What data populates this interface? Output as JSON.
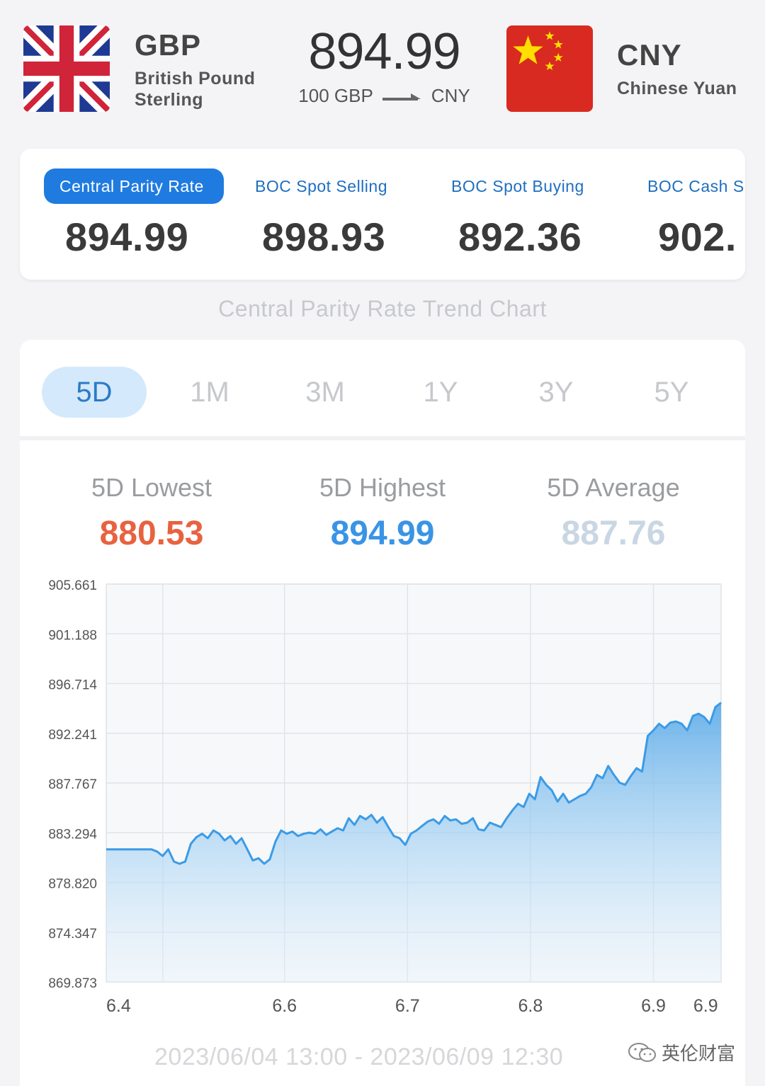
{
  "header": {
    "base": {
      "code": "GBP",
      "name": "British Pound Sterling"
    },
    "quote": {
      "code": "CNY",
      "name": "Chinese Yuan"
    },
    "rate": "894.99",
    "amount_base": "100 GBP",
    "amount_quote": "CNY"
  },
  "rates": [
    {
      "label": "Central Parity Rate",
      "value": "894.99",
      "active": true
    },
    {
      "label": "BOC Spot Selling",
      "value": "898.93",
      "active": false
    },
    {
      "label": "BOC Spot Buying",
      "value": "892.36",
      "active": false
    },
    {
      "label": "BOC Cash S",
      "value": "902.",
      "active": false
    }
  ],
  "trend_title": "Central Parity Rate Trend Chart",
  "tabs": [
    {
      "label": "5D",
      "active": true
    },
    {
      "label": "1M",
      "active": false
    },
    {
      "label": "3M",
      "active": false
    },
    {
      "label": "1Y",
      "active": false
    },
    {
      "label": "3Y",
      "active": false
    },
    {
      "label": "5Y",
      "active": false
    }
  ],
  "stats": {
    "lowest": {
      "label": "5D Lowest",
      "value": "880.53"
    },
    "highest": {
      "label": "5D Highest",
      "value": "894.99"
    },
    "average": {
      "label": "5D Average",
      "value": "887.76"
    }
  },
  "colors": {
    "accent": "#1f7be0",
    "lowest": "#e8623f",
    "highest": "#3a94e6",
    "average": "#c9d6e3",
    "line": "#3b9be6"
  },
  "chart_data": {
    "type": "area",
    "y_ticks": [
      "905.661",
      "901.188",
      "896.714",
      "892.241",
      "887.767",
      "883.294",
      "878.820",
      "874.347",
      "869.873"
    ],
    "ylim": [
      869.873,
      905.661
    ],
    "x_ticks": [
      {
        "label": "6.4",
        "pos": 0.02
      },
      {
        "label": "6.6",
        "pos": 0.29
      },
      {
        "label": "6.7",
        "pos": 0.49
      },
      {
        "label": "6.8",
        "pos": 0.69
      },
      {
        "label": "6.9",
        "pos": 0.89
      },
      {
        "label": "6.9",
        "pos": 0.975
      }
    ],
    "series": [
      {
        "values": [
          881.8,
          881.8,
          881.8,
          881.8,
          881.8,
          881.8,
          881.8,
          881.8,
          881.8,
          881.6,
          881.2,
          881.8,
          880.7,
          880.5,
          880.7,
          882.3,
          882.9,
          883.2,
          882.8,
          883.5,
          883.2,
          882.6,
          883.0,
          882.3,
          882.8,
          881.8,
          880.8,
          881.0,
          880.5,
          880.9,
          882.5,
          883.5,
          883.2,
          883.4,
          883.0,
          883.2,
          883.3,
          883.2,
          883.6,
          883.1,
          883.4,
          883.7,
          883.5,
          884.6,
          884.0,
          884.8,
          884.5,
          884.9,
          884.2,
          884.7,
          883.8,
          883.0,
          882.8,
          882.2,
          883.2,
          883.5,
          883.9,
          884.3,
          884.5,
          884.1,
          884.8,
          884.4,
          884.5,
          884.1,
          884.2,
          884.6,
          883.6,
          883.5,
          884.2,
          884.0,
          883.8,
          884.6,
          885.3,
          885.9,
          885.6,
          886.8,
          886.3,
          888.3,
          887.6,
          887.1,
          886.1,
          886.8,
          886.0,
          886.3,
          886.6,
          886.8,
          887.4,
          888.5,
          888.2,
          889.3,
          888.5,
          887.8,
          887.6,
          888.4,
          889.1,
          888.8,
          892.0,
          892.5,
          893.1,
          892.7,
          893.2,
          893.3,
          893.1,
          892.5,
          893.8,
          894.0,
          893.7,
          893.1,
          894.6,
          894.99
        ]
      }
    ]
  },
  "range_text": "2023/06/04 13:00 - 2023/06/09 12:30",
  "watermark": "英伦财富"
}
